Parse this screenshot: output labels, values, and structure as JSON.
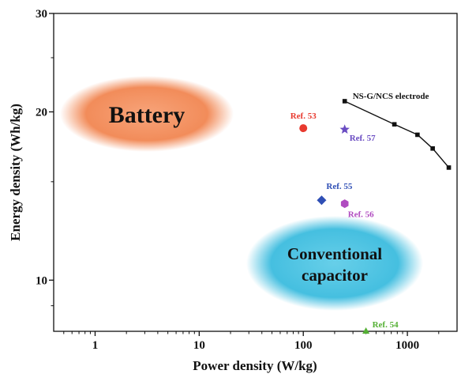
{
  "chart_data": {
    "type": "scatter",
    "x_scale": "log",
    "y_scale": "log",
    "xlim": [
      0.4,
      3000
    ],
    "ylim": [
      8.1,
      30
    ],
    "xlabel": "Power density (W/kg)",
    "ylabel": "Energy density (Wh/kg)",
    "x_ticks": [
      {
        "value": 1,
        "label": "1"
      },
      {
        "value": 10,
        "label": "10"
      },
      {
        "value": 100,
        "label": "100"
      },
      {
        "value": 1000,
        "label": "1000"
      }
    ],
    "y_ticks": [
      {
        "value": 10,
        "label": "10"
      },
      {
        "value": 20,
        "label": "20"
      },
      {
        "value": 30,
        "label": "30"
      }
    ],
    "series": [
      {
        "name": "NS-G/NCS electrode",
        "color": "#111111",
        "marker": "square",
        "points": [
          {
            "x": 250,
            "y": 20.9
          },
          {
            "x": 750,
            "y": 19.0
          },
          {
            "x": 1250,
            "y": 18.2
          },
          {
            "x": 1750,
            "y": 17.2
          },
          {
            "x": 2500,
            "y": 15.9
          }
        ]
      }
    ],
    "references": [
      {
        "label": "Ref. 53",
        "x": 100,
        "y": 18.7,
        "marker": "circle",
        "color": "#e83a2f"
      },
      {
        "label": "Ref. 57",
        "x": 250,
        "y": 18.6,
        "marker": "star",
        "color": "#6a4cc2"
      },
      {
        "label": "Ref. 55",
        "x": 150,
        "y": 13.9,
        "marker": "diamond",
        "color": "#2f4fb5"
      },
      {
        "label": "Ref. 56",
        "x": 250,
        "y": 13.7,
        "marker": "hexagon",
        "color": "#b04cc0"
      },
      {
        "label": "Ref. 54",
        "x": 400,
        "y": 8.1,
        "marker": "triangle",
        "color": "#55b035"
      }
    ],
    "regions": [
      {
        "label": "Battery",
        "color": "#f08f5e"
      },
      {
        "label": "Conventional capacitor",
        "line1": "Conventional",
        "line2": "capacitor",
        "color": "#4fc3e2"
      }
    ]
  }
}
